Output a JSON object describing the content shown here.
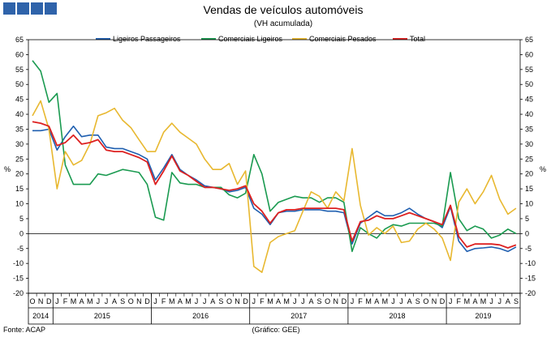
{
  "chart_data": {
    "type": "line",
    "title": "Vendas de veículos automóveis",
    "subtitle": "(VH acumulada)",
    "ylabel_left": "%",
    "ylabel_right": "%",
    "ylim": [
      -20,
      65
    ],
    "yticks": [
      -20,
      -15,
      -10,
      -5,
      0,
      5,
      10,
      15,
      20,
      25,
      30,
      35,
      40,
      45,
      50,
      55,
      60,
      65
    ],
    "months": [
      "O",
      "N",
      "D",
      "J",
      "F",
      "M",
      "A",
      "M",
      "J",
      "J",
      "A",
      "S",
      "O",
      "N",
      "D",
      "J",
      "F",
      "M",
      "A",
      "M",
      "J",
      "J",
      "A",
      "S",
      "O",
      "N",
      "D",
      "J",
      "F",
      "M",
      "A",
      "M",
      "J",
      "J",
      "A",
      "S",
      "O",
      "N",
      "D",
      "J",
      "F",
      "M",
      "A",
      "M",
      "J",
      "J",
      "A",
      "S",
      "O",
      "N",
      "D",
      "J",
      "F",
      "M",
      "A",
      "M",
      "J",
      "J",
      "A",
      "S"
    ],
    "years": [
      {
        "label": "2014",
        "start": 0,
        "end": 2
      },
      {
        "label": "2015",
        "start": 3,
        "end": 14
      },
      {
        "label": "2016",
        "start": 15,
        "end": 26
      },
      {
        "label": "2017",
        "start": 27,
        "end": 38
      },
      {
        "label": "2018",
        "start": 39,
        "end": 50
      },
      {
        "label": "2019",
        "start": 51,
        "end": 59
      }
    ],
    "series": [
      {
        "name": "Ligeiros Passageiros",
        "color": "#1f5fb0",
        "values": [
          34.5,
          34.5,
          35.0,
          28.0,
          32.5,
          36.0,
          32.5,
          33.0,
          33.0,
          29.0,
          28.5,
          28.5,
          27.5,
          26.5,
          25.0,
          18.0,
          22.0,
          26.5,
          21.5,
          19.5,
          18.0,
          16.0,
          15.5,
          15.0,
          14.0,
          14.5,
          15.5,
          8.5,
          6.5,
          3.0,
          7.0,
          7.5,
          7.5,
          8.0,
          8.0,
          8.0,
          7.5,
          7.5,
          7.0,
          -3.5,
          3.5,
          5.5,
          7.5,
          6.0,
          6.0,
          7.0,
          8.5,
          6.5,
          5.0,
          4.0,
          2.0,
          9.0,
          -2.5,
          -6.0,
          -5.0,
          -4.8,
          -4.5,
          -5.0,
          -6.0,
          -4.5
        ]
      },
      {
        "name": "Comerciais Ligeiros",
        "color": "#1a9a50",
        "values": [
          58.0,
          54.5,
          44.0,
          47.0,
          23.0,
          16.5,
          16.5,
          16.5,
          20.0,
          19.5,
          20.5,
          21.5,
          21.0,
          20.5,
          16.5,
          5.5,
          4.5,
          20.5,
          17.0,
          16.5,
          16.5,
          15.5,
          15.5,
          15.5,
          13.0,
          12.0,
          13.5,
          26.5,
          20.0,
          7.5,
          10.5,
          11.5,
          12.5,
          12.0,
          12.0,
          10.5,
          12.0,
          12.0,
          10.5,
          -6.0,
          2.0,
          0.0,
          -1.5,
          1.5,
          3.0,
          2.5,
          3.5,
          3.5,
          3.5,
          3.5,
          2.5,
          20.5,
          5.0,
          1.0,
          2.5,
          1.5,
          -1.5,
          -0.5,
          1.5,
          0.0
        ]
      },
      {
        "name": "Comerciais Pesados",
        "color": "#e8b830",
        "values": [
          39.5,
          44.5,
          35.0,
          15.0,
          27.5,
          23.0,
          24.5,
          30.0,
          39.5,
          40.5,
          42.0,
          38.0,
          35.5,
          31.5,
          27.5,
          27.5,
          34.0,
          37.0,
          34.0,
          32.0,
          30.0,
          25.0,
          21.5,
          21.5,
          23.5,
          16.5,
          21.0,
          -11.0,
          -13.0,
          -3.0,
          -1.0,
          0.0,
          1.0,
          7.5,
          14.0,
          12.5,
          8.5,
          14.0,
          11.0,
          28.5,
          9.5,
          -0.5,
          2.0,
          0.0,
          2.5,
          -3.0,
          -2.5,
          1.5,
          3.5,
          1.5,
          -1.5,
          -9.0,
          10.5,
          15.0,
          10.0,
          14.0,
          19.5,
          11.5,
          6.5,
          8.5
        ]
      },
      {
        "name": "Total",
        "color": "#dd2020",
        "values": [
          37.5,
          37.0,
          36.0,
          29.5,
          30.5,
          33.0,
          30.0,
          30.5,
          31.5,
          28.0,
          27.5,
          27.5,
          26.5,
          25.5,
          24.0,
          16.5,
          21.0,
          26.0,
          21.0,
          19.5,
          17.5,
          15.5,
          15.5,
          15.0,
          14.5,
          15.0,
          16.0,
          10.0,
          7.5,
          3.5,
          7.0,
          8.0,
          8.0,
          8.5,
          8.5,
          8.5,
          8.5,
          8.5,
          8.0,
          -2.5,
          4.0,
          4.5,
          6.0,
          5.0,
          5.0,
          6.0,
          7.0,
          6.0,
          5.0,
          4.0,
          3.0,
          9.5,
          -1.0,
          -4.5,
          -3.5,
          -3.5,
          -3.5,
          -3.8,
          -4.8,
          -3.8
        ]
      }
    ]
  },
  "footer": {
    "source": "Fonte: ACAP",
    "credit": "(Gráfico: GEE)"
  },
  "header_colors": {
    "tile": "#2f63aa"
  }
}
